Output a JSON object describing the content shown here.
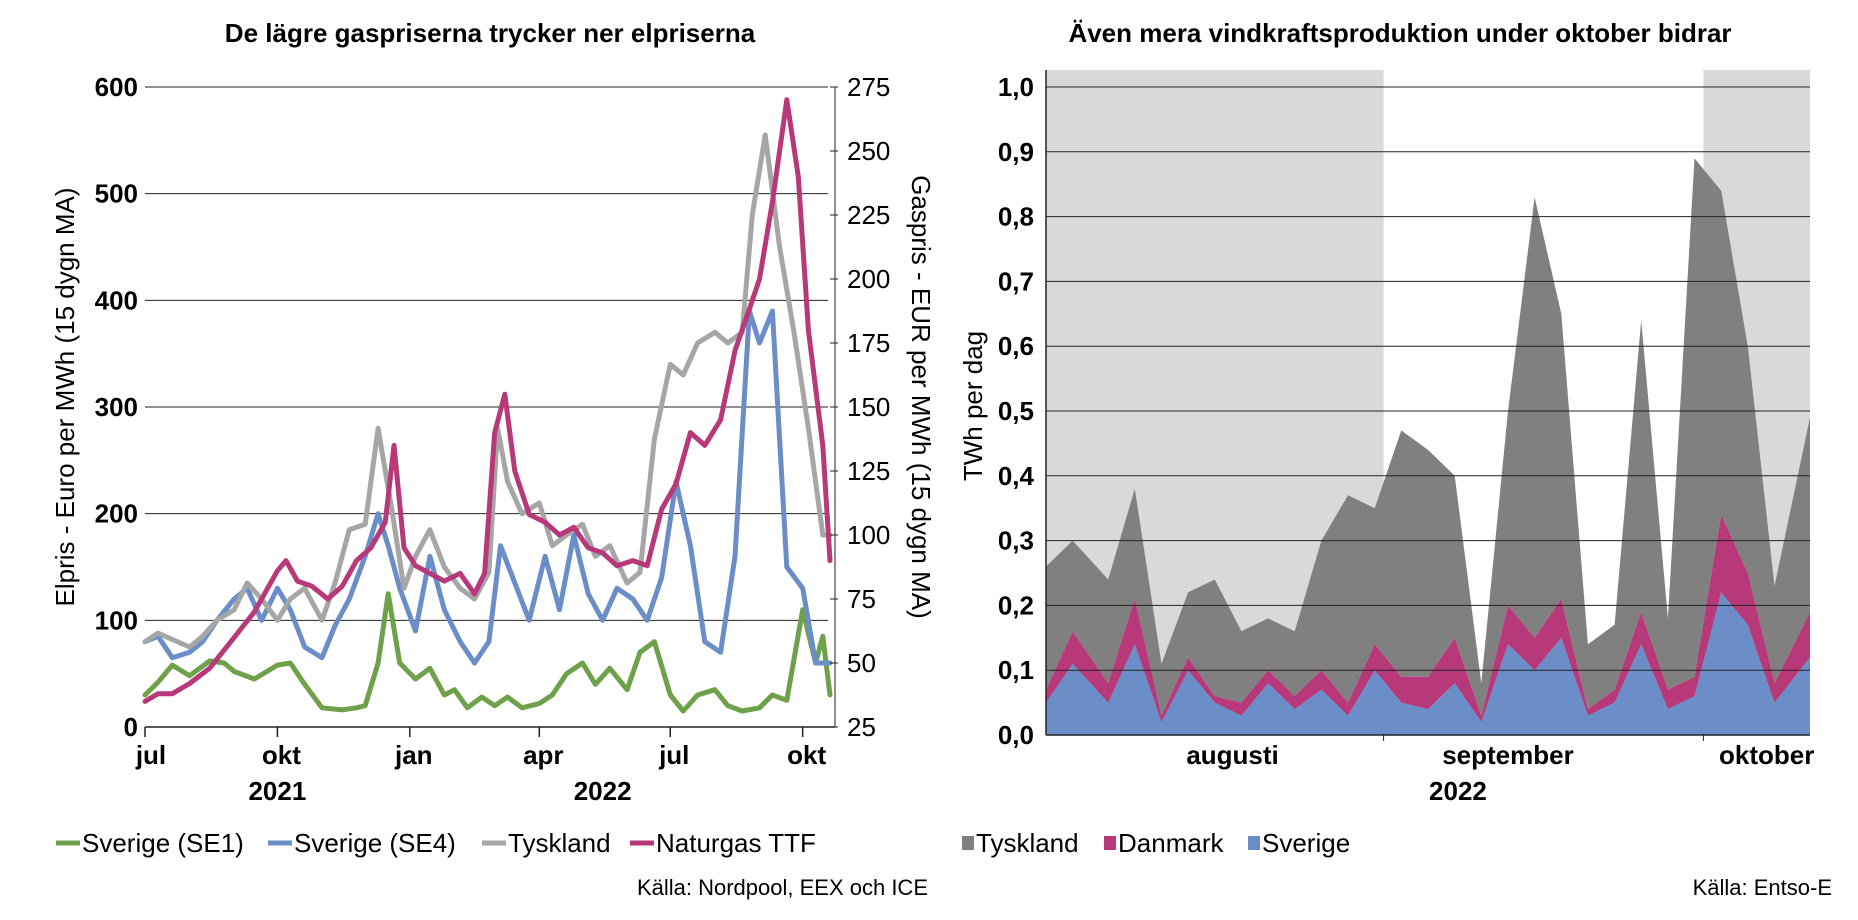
{
  "chart_data": [
    {
      "type": "line",
      "title": "De lägre gaspriserna trycker ner elpriserna",
      "ylabel": "Elpris - Euro per MWh (15 dygn MA)",
      "y2label": "Gaspris - EUR per MWh (15 dygn MA)",
      "ylim": [
        0,
        600
      ],
      "y2lim": [
        25,
        275
      ],
      "yticks": [
        "0",
        "100",
        "200",
        "300",
        "400",
        "500",
        "600"
      ],
      "y2ticks": [
        "25",
        "50",
        "75",
        "100",
        "125",
        "150",
        "175",
        "200",
        "225",
        "250",
        "275"
      ],
      "xticks": [
        "jul",
        "okt",
        "jan",
        "apr",
        "jul",
        "okt"
      ],
      "year_labels": [
        "2021",
        "2022"
      ],
      "grid": true,
      "legend": "bottom",
      "source": "Källa: Nordpool, EEX och ICE",
      "x_range": [
        "2021-07-01",
        "2022-10-20"
      ],
      "series": [
        {
          "name": "Sverige (SE1)",
          "color": "#6fa04a",
          "axis": "left",
          "x": [
            "2021-07-01",
            "2021-07-10",
            "2021-07-20",
            "2021-08-01",
            "2021-08-15",
            "2021-08-25",
            "2021-09-01",
            "2021-09-15",
            "2021-10-01",
            "2021-10-10",
            "2021-10-20",
            "2021-11-01",
            "2021-11-15",
            "2021-11-25",
            "2021-12-01",
            "2021-12-10",
            "2021-12-17",
            "2021-12-25",
            "2022-01-05",
            "2022-01-15",
            "2022-01-25",
            "2022-02-01",
            "2022-02-10",
            "2022-02-20",
            "2022-03-01",
            "2022-03-10",
            "2022-03-20",
            "2022-04-01",
            "2022-04-10",
            "2022-04-20",
            "2022-05-01",
            "2022-05-10",
            "2022-05-20",
            "2022-06-01",
            "2022-06-10",
            "2022-06-20",
            "2022-07-01",
            "2022-07-10",
            "2022-07-20",
            "2022-08-01",
            "2022-08-10",
            "2022-08-20",
            "2022-09-01",
            "2022-09-10",
            "2022-09-20",
            "2022-10-01",
            "2022-10-10",
            "2022-10-15",
            "2022-10-20"
          ],
          "values": [
            30,
            42,
            58,
            48,
            62,
            60,
            52,
            45,
            58,
            60,
            40,
            18,
            16,
            18,
            20,
            60,
            125,
            60,
            45,
            55,
            30,
            35,
            18,
            28,
            20,
            28,
            18,
            22,
            30,
            50,
            60,
            40,
            55,
            35,
            70,
            80,
            30,
            15,
            30,
            35,
            20,
            15,
            18,
            30,
            25,
            110,
            60,
            85,
            30
          ]
        },
        {
          "name": "Sverige (SE4)",
          "color": "#6b8ec8",
          "axis": "left",
          "x": [
            "2021-07-01",
            "2021-07-10",
            "2021-07-20",
            "2021-08-01",
            "2021-08-10",
            "2021-08-20",
            "2021-09-01",
            "2021-09-10",
            "2021-09-20",
            "2021-10-01",
            "2021-10-10",
            "2021-10-20",
            "2021-11-01",
            "2021-11-10",
            "2021-11-20",
            "2021-12-01",
            "2021-12-10",
            "2021-12-17",
            "2021-12-25",
            "2022-01-05",
            "2022-01-15",
            "2022-01-25",
            "2022-02-05",
            "2022-02-15",
            "2022-02-25",
            "2022-03-05",
            "2022-03-15",
            "2022-03-25",
            "2022-04-05",
            "2022-04-15",
            "2022-04-25",
            "2022-05-05",
            "2022-05-15",
            "2022-05-25",
            "2022-06-05",
            "2022-06-15",
            "2022-06-25",
            "2022-07-05",
            "2022-07-15",
            "2022-07-25",
            "2022-08-05",
            "2022-08-15",
            "2022-08-25",
            "2022-09-01",
            "2022-09-10",
            "2022-09-20",
            "2022-10-01",
            "2022-10-10",
            "2022-10-20"
          ],
          "values": [
            80,
            85,
            65,
            70,
            80,
            100,
            120,
            130,
            100,
            130,
            110,
            75,
            65,
            95,
            120,
            160,
            200,
            170,
            130,
            90,
            160,
            110,
            80,
            60,
            80,
            170,
            135,
            100,
            160,
            110,
            180,
            125,
            100,
            130,
            120,
            100,
            140,
            230,
            170,
            80,
            70,
            160,
            390,
            360,
            390,
            150,
            130,
            60,
            60
          ]
        },
        {
          "name": "Tyskland",
          "color": "#a6a6a6",
          "axis": "left",
          "x": [
            "2021-07-01",
            "2021-07-10",
            "2021-07-20",
            "2021-08-01",
            "2021-08-10",
            "2021-08-20",
            "2021-09-01",
            "2021-09-10",
            "2021-09-20",
            "2021-10-01",
            "2021-10-10",
            "2021-10-20",
            "2021-11-01",
            "2021-11-10",
            "2021-11-20",
            "2021-12-01",
            "2021-12-10",
            "2021-12-20",
            "2021-12-28",
            "2022-01-05",
            "2022-01-15",
            "2022-01-25",
            "2022-02-05",
            "2022-02-15",
            "2022-02-25",
            "2022-03-03",
            "2022-03-10",
            "2022-03-20",
            "2022-04-01",
            "2022-04-10",
            "2022-04-20",
            "2022-05-01",
            "2022-05-10",
            "2022-05-20",
            "2022-06-01",
            "2022-06-10",
            "2022-06-20",
            "2022-07-01",
            "2022-07-10",
            "2022-07-20",
            "2022-08-01",
            "2022-08-10",
            "2022-08-20",
            "2022-08-27",
            "2022-09-05",
            "2022-09-15",
            "2022-09-25",
            "2022-10-05",
            "2022-10-15",
            "2022-10-20"
          ],
          "values": [
            80,
            88,
            82,
            75,
            85,
            100,
            110,
            135,
            120,
            100,
            120,
            130,
            100,
            135,
            185,
            190,
            280,
            200,
            130,
            160,
            185,
            150,
            130,
            120,
            145,
            280,
            230,
            200,
            210,
            170,
            180,
            190,
            160,
            170,
            135,
            145,
            270,
            340,
            330,
            360,
            370,
            360,
            370,
            480,
            555,
            450,
            370,
            280,
            180,
            180
          ]
        },
        {
          "name": "Naturgas TTF",
          "color": "#b8397a",
          "axis": "right",
          "x": [
            "2021-07-01",
            "2021-07-10",
            "2021-07-20",
            "2021-08-01",
            "2021-08-15",
            "2021-09-01",
            "2021-09-15",
            "2021-10-01",
            "2021-10-07",
            "2021-10-15",
            "2021-10-25",
            "2021-11-05",
            "2021-11-15",
            "2021-11-25",
            "2021-12-05",
            "2021-12-15",
            "2021-12-21",
            "2021-12-28",
            "2022-01-05",
            "2022-01-15",
            "2022-01-25",
            "2022-02-05",
            "2022-02-15",
            "2022-02-22",
            "2022-03-01",
            "2022-03-08",
            "2022-03-15",
            "2022-03-25",
            "2022-04-05",
            "2022-04-15",
            "2022-04-25",
            "2022-05-05",
            "2022-05-15",
            "2022-05-25",
            "2022-06-05",
            "2022-06-15",
            "2022-06-25",
            "2022-07-05",
            "2022-07-15",
            "2022-07-25",
            "2022-08-05",
            "2022-08-15",
            "2022-08-26",
            "2022-09-01",
            "2022-09-10",
            "2022-09-20",
            "2022-09-28",
            "2022-10-05",
            "2022-10-15",
            "2022-10-20"
          ],
          "values": [
            35,
            38,
            38,
            42,
            48,
            60,
            70,
            86,
            90,
            82,
            80,
            75,
            80,
            90,
            95,
            105,
            135,
            95,
            88,
            85,
            82,
            85,
            77,
            85,
            140,
            155,
            125,
            108,
            105,
            100,
            103,
            95,
            93,
            88,
            90,
            88,
            110,
            120,
            140,
            135,
            145,
            172,
            190,
            200,
            230,
            270,
            240,
            180,
            135,
            90
          ]
        }
      ]
    },
    {
      "type": "area",
      "stacked": true,
      "title": "Även mera vindkraftsproduktion under oktober bidrar",
      "ylabel": "TWh per dag",
      "ylim": [
        0,
        1.0
      ],
      "yticks": [
        "0,0",
        "0,1",
        "0,2",
        "0,3",
        "0,4",
        "0,5",
        "0,6",
        "0,7",
        "0,8",
        "0,9",
        "1,0"
      ],
      "xticks": [
        "augusti",
        "september",
        "oktober"
      ],
      "year_label": "2022",
      "grid": true,
      "legend": "bottom",
      "source": "Källa: Entso-E",
      "shaded_spans": [
        [
          "augusti"
        ],
        [
          "oktober"
        ]
      ],
      "x_range": [
        "2022-07-25",
        "2022-10-19"
      ],
      "series": [
        {
          "name": "Sverige",
          "color": "#6b8ec8",
          "x": [
            "2022-07-25",
            "2022-07-28",
            "2022-08-01",
            "2022-08-04",
            "2022-08-07",
            "2022-08-10",
            "2022-08-13",
            "2022-08-16",
            "2022-08-19",
            "2022-08-22",
            "2022-08-25",
            "2022-08-28",
            "2022-08-31",
            "2022-09-03",
            "2022-09-06",
            "2022-09-09",
            "2022-09-12",
            "2022-09-15",
            "2022-09-18",
            "2022-09-21",
            "2022-09-24",
            "2022-09-27",
            "2022-09-30",
            "2022-10-03",
            "2022-10-06",
            "2022-10-09",
            "2022-10-12",
            "2022-10-15",
            "2022-10-19"
          ],
          "values": [
            0.05,
            0.11,
            0.05,
            0.14,
            0.02,
            0.1,
            0.05,
            0.03,
            0.08,
            0.04,
            0.07,
            0.03,
            0.1,
            0.05,
            0.04,
            0.08,
            0.02,
            0.14,
            0.1,
            0.15,
            0.03,
            0.05,
            0.14,
            0.04,
            0.06,
            0.22,
            0.17,
            0.05,
            0.12
          ]
        },
        {
          "name": "Danmark",
          "color": "#b8397a",
          "x": [
            "2022-07-25",
            "2022-07-28",
            "2022-08-01",
            "2022-08-04",
            "2022-08-07",
            "2022-08-10",
            "2022-08-13",
            "2022-08-16",
            "2022-08-19",
            "2022-08-22",
            "2022-08-25",
            "2022-08-28",
            "2022-08-31",
            "2022-09-03",
            "2022-09-06",
            "2022-09-09",
            "2022-09-12",
            "2022-09-15",
            "2022-09-18",
            "2022-09-21",
            "2022-09-24",
            "2022-09-27",
            "2022-09-30",
            "2022-10-03",
            "2022-10-06",
            "2022-10-09",
            "2022-10-12",
            "2022-10-15",
            "2022-10-19"
          ],
          "values": [
            0.02,
            0.05,
            0.03,
            0.07,
            0.01,
            0.02,
            0.01,
            0.02,
            0.02,
            0.02,
            0.03,
            0.02,
            0.04,
            0.04,
            0.05,
            0.07,
            0.01,
            0.06,
            0.05,
            0.06,
            0.01,
            0.02,
            0.05,
            0.03,
            0.03,
            0.12,
            0.08,
            0.03,
            0.07
          ]
        },
        {
          "name": "Tyskland",
          "color": "#808080",
          "x": [
            "2022-07-25",
            "2022-07-28",
            "2022-08-01",
            "2022-08-04",
            "2022-08-07",
            "2022-08-10",
            "2022-08-13",
            "2022-08-16",
            "2022-08-19",
            "2022-08-22",
            "2022-08-25",
            "2022-08-28",
            "2022-08-31",
            "2022-09-03",
            "2022-09-06",
            "2022-09-09",
            "2022-09-12",
            "2022-09-15",
            "2022-09-18",
            "2022-09-21",
            "2022-09-24",
            "2022-09-27",
            "2022-09-30",
            "2022-10-03",
            "2022-10-06",
            "2022-10-09",
            "2022-10-12",
            "2022-10-15",
            "2022-10-19"
          ],
          "values": [
            0.19,
            0.14,
            0.16,
            0.17,
            0.08,
            0.1,
            0.18,
            0.11,
            0.08,
            0.1,
            0.2,
            0.32,
            0.21,
            0.38,
            0.35,
            0.25,
            0.05,
            0.3,
            0.68,
            0.44,
            0.1,
            0.1,
            0.45,
            0.11,
            0.8,
            0.5,
            0.35,
            0.15,
            0.3
          ]
        }
      ]
    }
  ]
}
